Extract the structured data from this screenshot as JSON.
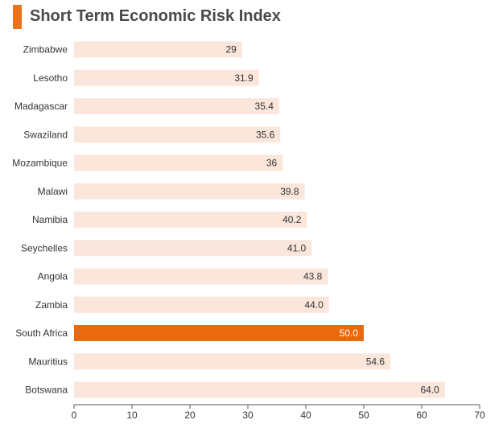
{
  "chart_data": {
    "type": "bar",
    "orientation": "horizontal",
    "title": "Short Term Economic Risk Index",
    "categories": [
      "Zimbabwe",
      "Lesotho",
      "Madagascar",
      "Swaziland",
      "Mozambique",
      "Malawi",
      "Namibia",
      "Seychelles",
      "Angola",
      "Zambia",
      "South Africa",
      "Mauritius",
      "Botswana"
    ],
    "values": [
      29,
      31.9,
      35.4,
      35.6,
      36,
      39.8,
      40.2,
      41.0,
      43.8,
      44.0,
      50.0,
      54.6,
      64.0
    ],
    "value_labels": [
      "29",
      "31.9",
      "35.4",
      "35.6",
      "36",
      "39.8",
      "40.2",
      "41.0",
      "43.8",
      "44.0",
      "50.0",
      "54.6",
      "64.0"
    ],
    "highlight": "South Africa",
    "xlim": [
      0,
      70
    ],
    "xticks": [
      "0",
      "10",
      "20",
      "30",
      "40",
      "50",
      "60",
      "70"
    ],
    "xlabel": "",
    "ylabel": "",
    "grid": false,
    "colors": {
      "bar": "#fbe6dc",
      "highlight": "#e8690e",
      "accent": "#e8731a",
      "axis": "#555555"
    }
  }
}
